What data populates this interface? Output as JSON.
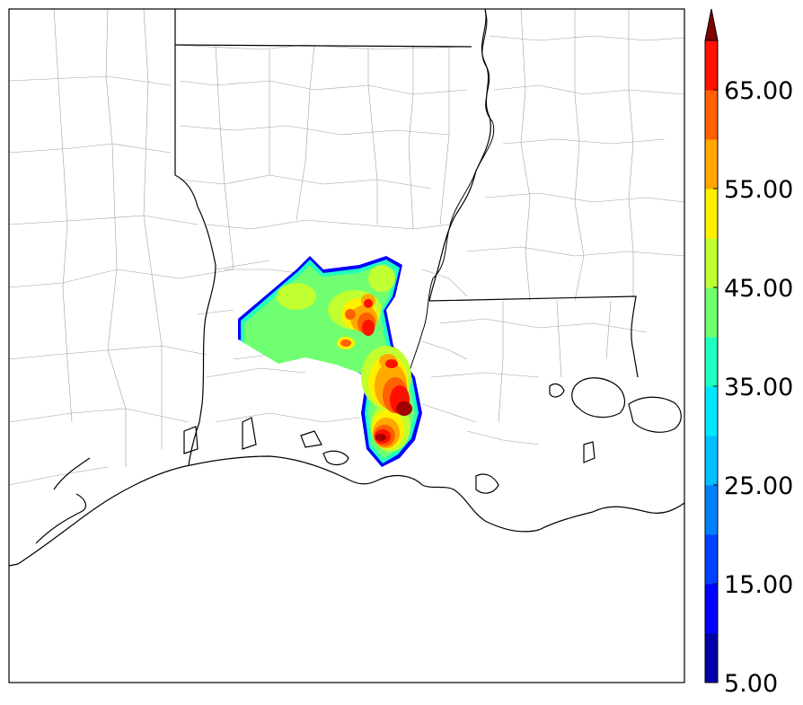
{
  "colorbar": {
    "tick_labels": [
      "5.00",
      "15.00",
      "25.00",
      "35.00",
      "45.00",
      "55.00",
      "65.00"
    ],
    "tick_values": [
      5,
      15,
      25,
      35,
      45,
      55,
      65
    ],
    "min": 5,
    "max": 70,
    "extend": "max",
    "levels": [
      5,
      10,
      15,
      20,
      25,
      30,
      35,
      40,
      45,
      50,
      55,
      60,
      65,
      70
    ],
    "colors": [
      "#0000a8",
      "#0000ff",
      "#0040ff",
      "#0080ff",
      "#00c0ff",
      "#00e8ff",
      "#20ffc0",
      "#70ff70",
      "#c0ff30",
      "#fff000",
      "#ffa800",
      "#ff6000",
      "#ff1000",
      "#a00000"
    ],
    "extend_color": "#800000"
  },
  "map": {
    "background": "#ffffff",
    "water": "#ffffff",
    "border_color": "#000000",
    "county_color": "#999999"
  }
}
